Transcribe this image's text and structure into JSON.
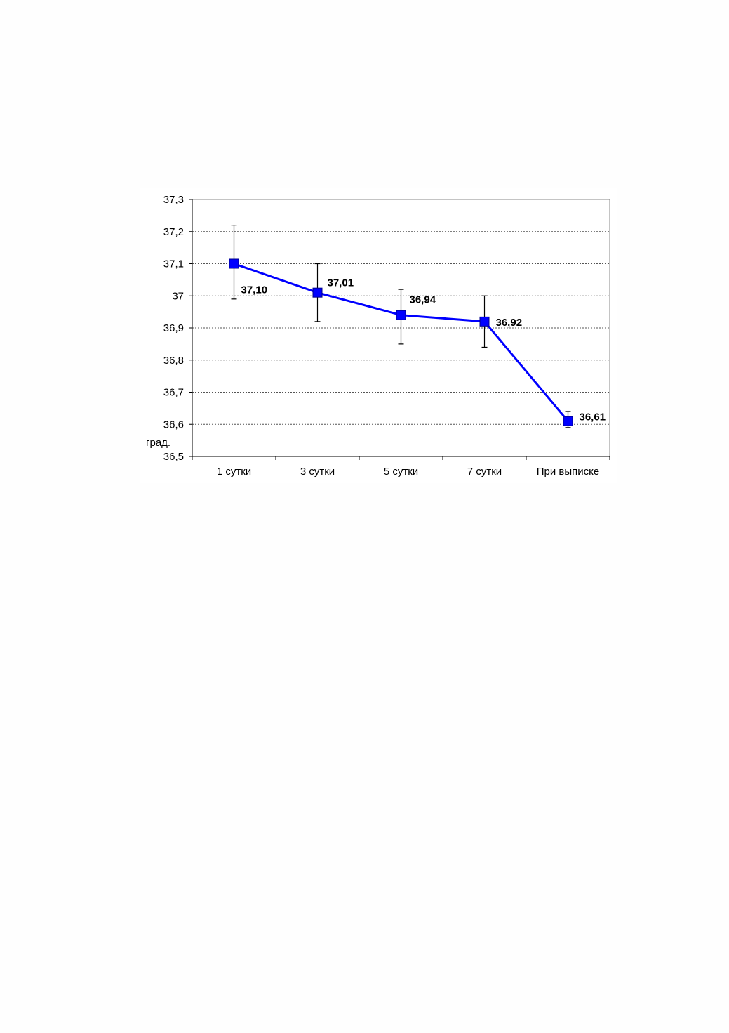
{
  "chart_data": {
    "type": "line",
    "categories": [
      "1 сутки",
      "3 сутки",
      "5 сутки",
      "7 сутки",
      "При выписке"
    ],
    "series": [
      {
        "values": [
          37.1,
          37.01,
          36.94,
          36.92,
          36.61
        ],
        "labels": [
          "37,10",
          "37,01",
          "36,94",
          "36,92",
          "36,61"
        ],
        "error_low": [
          36.99,
          36.92,
          36.85,
          36.84,
          36.59
        ],
        "error_high": [
          37.22,
          37.1,
          37.02,
          37.0,
          36.64
        ],
        "color": "#0000ff",
        "marker": "square"
      }
    ],
    "ylabel": "град.",
    "ylim": [
      36.5,
      37.3
    ],
    "yticks": [
      37.3,
      37.2,
      37.1,
      37.0,
      36.9,
      36.8,
      36.7,
      36.6,
      36.5
    ],
    "ytick_labels": [
      "37,3",
      "37,2",
      "37,1",
      "37",
      "36,9",
      "36,8",
      "36,7",
      "36,6",
      "36,5"
    ],
    "grid": true,
    "legend": "none"
  }
}
